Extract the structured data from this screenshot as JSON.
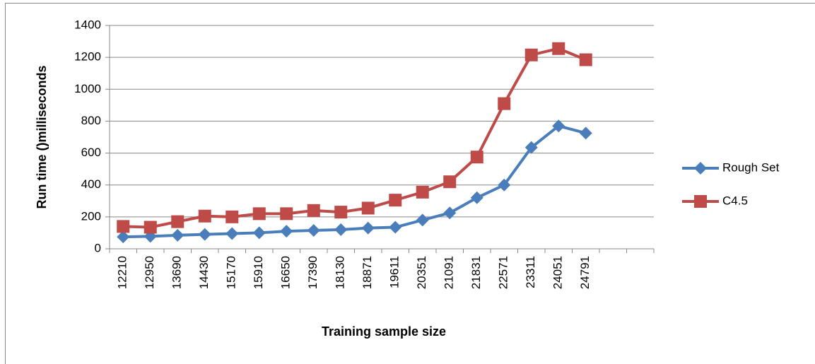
{
  "chart_data": {
    "type": "line",
    "x_label": "Training sample size",
    "y_label": "Run time ()milliseconds",
    "categories": [
      "12210",
      "12950",
      "13690",
      "14430",
      "15170",
      "15910",
      "16650",
      "17390",
      "18130",
      "18871",
      "19611",
      "20351",
      "21091",
      "21831",
      "22571",
      "23311",
      "24051",
      "24791",
      null,
      null
    ],
    "series": [
      {
        "name": "Rough Set",
        "color": "#4a7ebb",
        "marker": "diamond",
        "values": [
          75,
          78,
          85,
          90,
          95,
          100,
          110,
          115,
          120,
          130,
          135,
          180,
          225,
          320,
          400,
          635,
          770,
          725,
          null,
          null
        ]
      },
      {
        "name": "C4.5",
        "color": "#be4b48",
        "marker": "square",
        "values": [
          140,
          135,
          170,
          205,
          200,
          220,
          220,
          240,
          230,
          255,
          305,
          355,
          420,
          575,
          910,
          1215,
          1255,
          1185,
          null,
          null
        ]
      }
    ],
    "ylim": [
      0,
      1400
    ],
    "yticks": [
      0,
      200,
      400,
      600,
      800,
      1000,
      1200,
      1400
    ],
    "grid": true,
    "legend": "right"
  }
}
